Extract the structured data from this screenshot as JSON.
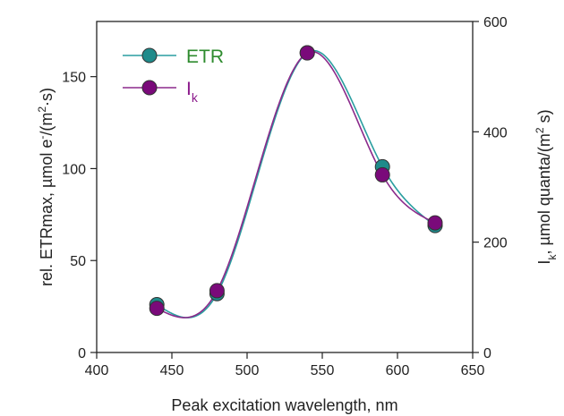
{
  "chart_data": {
    "type": "line",
    "x": [
      440,
      480,
      540,
      590,
      625
    ],
    "series": [
      {
        "name": "ETR",
        "axis": "left",
        "values": [
          26,
          32,
          163,
          101,
          69
        ],
        "color": "#1f8b8b",
        "line_color": "#2a9ea0"
      },
      {
        "name": "Ik",
        "name_main": "I",
        "name_sub": "k",
        "axis": "right",
        "values": [
          80,
          112,
          543,
          322,
          235
        ],
        "color": "#7a0a7a",
        "line_color": "#8b2a8b"
      }
    ],
    "xlabel": "Peak excitation wavelength, nm",
    "ylabel_left": {
      "pre": "rel. ETRmax, µmol e",
      "sup1": "-",
      "mid": "/(m",
      "sup2": "2",
      "post": "·s)"
    },
    "ylabel_right": {
      "pre": "I",
      "sub": "k",
      "mid": ", µmol quanta/(m",
      "sup": "2",
      "post": " s)"
    },
    "xlim": [
      400,
      650
    ],
    "ylim_left": [
      0,
      180
    ],
    "ylim_right": [
      0,
      600
    ],
    "xticks": [
      "400",
      "450",
      "500",
      "550",
      "600",
      "650"
    ],
    "yticks_left": [
      "0",
      "50",
      "100",
      "150"
    ],
    "yticks_right": [
      "0",
      "200",
      "400",
      "600"
    ],
    "legend_position": "top-left",
    "grid": false,
    "colors": {
      "legend_etr_text": "#2e8b2e",
      "legend_ik_text": "#8b1a8b"
    }
  }
}
